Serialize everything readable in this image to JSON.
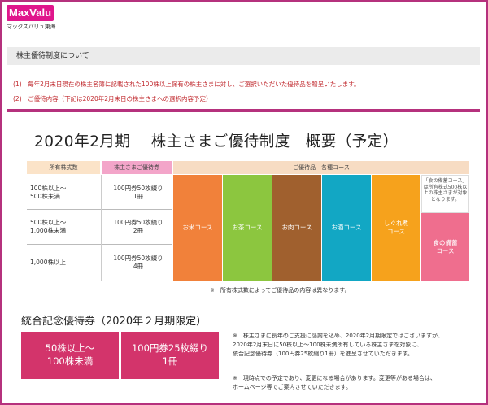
{
  "logo": {
    "brand": "MaxValu",
    "subtitle": "マックスバリュ東海"
  },
  "section_bar": {
    "title": "株主優待制度について"
  },
  "notes": {
    "n1": "(1)　毎年2月末日現在の株主名簿に記載された100株以上保有の株主さまに対し、ご選択いただいた優待品を贈呈いたします。",
    "n2": "(2)　ご優待内容（下記は2020年2月末日の株主さまへの選択内容予定）"
  },
  "main_title": "2020年2月期　 株主さまご優待制度　概要（予定）",
  "table": {
    "headers": {
      "count": "所有株式数",
      "voucher": "株主さまご優待券",
      "gifts": "ご優待品　各種コース"
    },
    "rows": [
      {
        "count": "100株以上～\n500株未満",
        "voucher": "100円券50枚綴り\n1冊"
      },
      {
        "count": "500株以上～\n1,000株未満",
        "voucher": "100円券50枚綴り\n2冊"
      },
      {
        "count": "1,000株以上",
        "voucher": "100円券50枚綴り\n4冊"
      }
    ],
    "courses": {
      "rice": "お米コース",
      "tea": "お茶コース",
      "meat": "お肉コース",
      "sake": "お酒コース",
      "shigure": "しぐれ煮\nコース",
      "bichiku": "食の備蓄\nコース",
      "bichiku_note": "「食の備蓄コース」は所有株式500株以上の株主さまが対象となります。"
    }
  },
  "footnote": "※　所有株式数によってご優待品の内容は異なります。",
  "commemorative": {
    "title": "統合記念優待券（2020年２月期限定）",
    "box1": "50株以上～\n100株未満",
    "box2": "100円券25枚綴り\n1冊",
    "note1": "※　株主さまに長年のご支援に感謝を込め、2020年2月期限定ではございますが、\n2020年2月末日に50株以上～100株未満所有している株主さまを対象に、\n統合記念優待券（100円券25枚綴り1冊）を進呈させていただきます。",
    "note2": "※　現時点での予定であり、変更になる場合があります。変更等がある場合は、\nホームページ等でご案内させていただきます。"
  },
  "colors": {
    "frame": "#b5317d",
    "logo": "#e0168c",
    "rice": "#f1813a",
    "tea": "#8cc63f",
    "meat": "#a0602e",
    "sake": "#12a7c4",
    "shigure": "#f6a21c",
    "bichiku": "#ef6e8e",
    "commemorative": "#d3346b"
  }
}
